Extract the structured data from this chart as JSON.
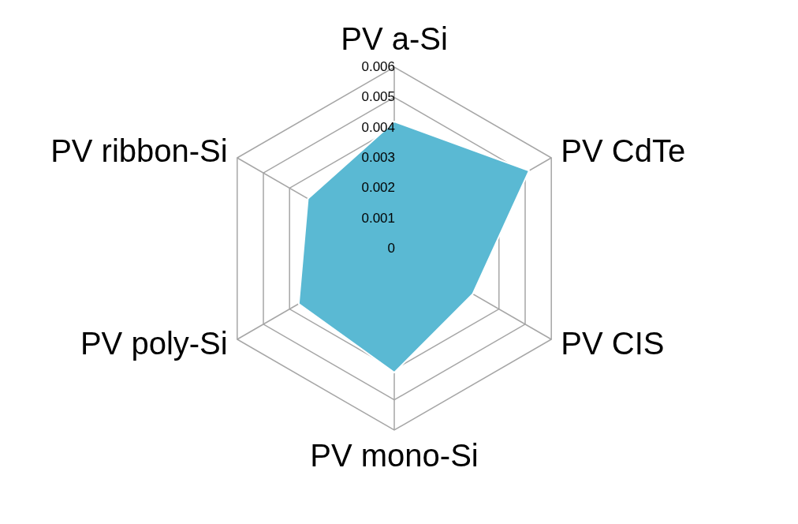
{
  "chart_data": {
    "type": "radar",
    "categories": [
      "PV a-Si",
      "PV CdTe",
      "PV CIS",
      "PV mono-Si",
      "PV poly-Si",
      "PV ribbon-Si"
    ],
    "series": [
      {
        "color": "#5ab9d3",
        "values": [
          0.0042,
          0.00515,
          0.003,
          0.0041,
          0.00365,
          0.0033
        ]
      }
    ],
    "ylim": [
      0,
      0.006
    ],
    "yticks": [
      0,
      0.001,
      0.002,
      0.003,
      0.004,
      0.005,
      0.006
    ],
    "grid": true
  }
}
